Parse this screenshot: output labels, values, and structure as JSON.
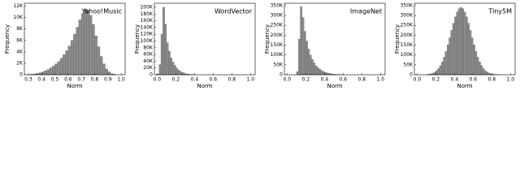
{
  "chart_data": [
    {
      "type": "histogram",
      "title": "Yahoo!Music",
      "xlabel": "Norm",
      "ylabel": "Frequency",
      "color": "#8c8c8c",
      "bins": [
        0.3,
        0.32,
        0.34,
        0.36,
        0.38,
        0.4,
        0.42,
        0.44,
        0.46,
        0.48,
        0.5,
        0.52,
        0.54,
        0.56,
        0.58,
        0.6,
        0.62,
        0.64,
        0.66,
        0.68,
        0.7,
        0.72,
        0.74,
        0.76,
        0.78,
        0.8,
        0.82,
        0.84,
        0.86,
        0.88,
        0.9,
        0.92,
        0.94,
        0.96
      ],
      "values": [
        50,
        100,
        150,
        250,
        350,
        500,
        700,
        900,
        1200,
        1500,
        1900,
        2300,
        2900,
        3500,
        4200,
        5000,
        6000,
        7100,
        8300,
        9600,
        10700,
        11500,
        11300,
        10400,
        8800,
        6800,
        4900,
        3200,
        1900,
        1000,
        500,
        200,
        80
      ],
      "xlim": [
        0.27,
        1.03
      ],
      "ylim": [
        0,
        12500
      ],
      "xticks": [
        0.3,
        0.4,
        0.5,
        0.6,
        0.7,
        0.8,
        0.9,
        {
          "value": 1,
          "label": "1.0"
        }
      ],
      "yticks": [
        0,
        {
          "value": 2000,
          "label": "2K"
        },
        {
          "value": 4000,
          "label": "4K"
        },
        {
          "value": 6000,
          "label": "6K"
        },
        {
          "value": 8000,
          "label": "8K"
        },
        {
          "value": 10000,
          "label": "10K"
        },
        {
          "value": 12000,
          "label": "12K"
        }
      ]
    },
    {
      "type": "histogram",
      "title": "WordVector",
      "xlabel": "Norm",
      "ylabel": "Frequency",
      "color": "#8c8c8c",
      "bins": [
        0.0,
        0.02,
        0.04,
        0.06,
        0.08,
        0.1,
        0.12,
        0.14,
        0.16,
        0.18,
        0.2,
        0.22,
        0.24,
        0.26,
        0.28,
        0.3,
        0.32,
        0.34,
        0.36,
        0.38,
        0.4
      ],
      "values": [
        2000,
        30000,
        120000,
        200000,
        150000,
        95000,
        70000,
        50000,
        38000,
        28000,
        20000,
        14000,
        10000,
        7000,
        5000,
        3000,
        2000,
        1200,
        700,
        400
      ],
      "xlim": [
        -0.03,
        1.05
      ],
      "ylim": [
        0,
        212000
      ],
      "xticks": [
        {
          "value": 0,
          "label": "0.0"
        },
        0.2,
        0.4,
        0.6,
        0.8,
        {
          "value": 1,
          "label": "1.0"
        }
      ],
      "yticks": [
        0,
        {
          "value": 20000,
          "label": "20K"
        },
        {
          "value": 40000,
          "label": "40K"
        },
        {
          "value": 60000,
          "label": "60K"
        },
        {
          "value": 80000,
          "label": "80K"
        },
        {
          "value": 100000,
          "label": "100K"
        },
        {
          "value": 120000,
          "label": "120K"
        },
        {
          "value": 140000,
          "label": "140K"
        },
        {
          "value": 160000,
          "label": "160K"
        },
        {
          "value": 180000,
          "label": "180K"
        },
        {
          "value": 200000,
          "label": "200K"
        }
      ]
    },
    {
      "type": "histogram",
      "title": "ImageNet",
      "xlabel": "Norm",
      "ylabel": "Frequency",
      "color": "#8c8c8c",
      "bins": [
        0.1,
        0.12,
        0.14,
        0.16,
        0.18,
        0.2,
        0.22,
        0.24,
        0.26,
        0.28,
        0.3,
        0.32,
        0.34,
        0.36,
        0.38,
        0.4,
        0.42,
        0.44,
        0.46,
        0.48,
        0.5,
        0.52,
        0.54,
        0.56,
        0.58,
        0.6
      ],
      "values": [
        15000,
        180000,
        345000,
        290000,
        220000,
        170000,
        130000,
        100000,
        78000,
        60000,
        46000,
        36000,
        28000,
        21000,
        16000,
        12000,
        9000,
        7000,
        5000,
        3500,
        2500,
        1800,
        1200,
        800,
        500
      ],
      "xlim": [
        -0.03,
        1.05
      ],
      "ylim": [
        0,
        362000
      ],
      "xticks": [
        {
          "value": 0,
          "label": "0.0"
        },
        0.2,
        0.4,
        0.6,
        0.8,
        {
          "value": 1,
          "label": "1.0"
        }
      ],
      "yticks": [
        0,
        {
          "value": 50000,
          "label": "50K"
        },
        {
          "value": 100000,
          "label": "100K"
        },
        {
          "value": 150000,
          "label": "150K"
        },
        {
          "value": 200000,
          "label": "200K"
        },
        {
          "value": 250000,
          "label": "250K"
        },
        {
          "value": 300000,
          "label": "300K"
        },
        {
          "value": 350000,
          "label": "350K"
        }
      ]
    },
    {
      "type": "histogram",
      "title": "Tiny5M",
      "xlabel": "Norm",
      "ylabel": "Frequency",
      "color": "#8c8c8c",
      "bins": [
        0.1,
        0.12,
        0.14,
        0.16,
        0.18,
        0.2,
        0.22,
        0.24,
        0.26,
        0.28,
        0.3,
        0.32,
        0.34,
        0.36,
        0.38,
        0.4,
        0.42,
        0.44,
        0.46,
        0.48,
        0.5,
        0.52,
        0.54,
        0.56,
        0.58,
        0.6,
        0.62,
        0.64,
        0.66,
        0.68,
        0.7,
        0.72,
        0.74,
        0.76,
        0.78,
        0.8,
        0.82,
        0.84,
        0.86,
        0.88,
        0.9
      ],
      "values": [
        1600,
        2900,
        4900,
        8300,
        13300,
        20900,
        31500,
        46000,
        65000,
        89000,
        118000,
        151000,
        187000,
        225000,
        261000,
        293000,
        318000,
        334000,
        340000,
        334000,
        318000,
        293000,
        261000,
        225000,
        187000,
        151000,
        118000,
        89000,
        65000,
        46000,
        31500,
        20900,
        13300,
        8300,
        4900,
        2900,
        1600,
        900,
        500,
        200
      ],
      "xlim": [
        -0.03,
        1.05
      ],
      "ylim": [
        0,
        362000
      ],
      "xticks": [
        {
          "value": 0,
          "label": "0.0"
        },
        0.2,
        0.4,
        0.6,
        0.8,
        {
          "value": 1,
          "label": "1.0"
        }
      ],
      "yticks": [
        0,
        {
          "value": 50000,
          "label": "50K"
        },
        {
          "value": 100000,
          "label": "100K"
        },
        {
          "value": 150000,
          "label": "150K"
        },
        {
          "value": 200000,
          "label": "200K"
        },
        {
          "value": 250000,
          "label": "250K"
        },
        {
          "value": 300000,
          "label": "300K"
        },
        {
          "value": 350000,
          "label": "350K"
        }
      ]
    }
  ]
}
